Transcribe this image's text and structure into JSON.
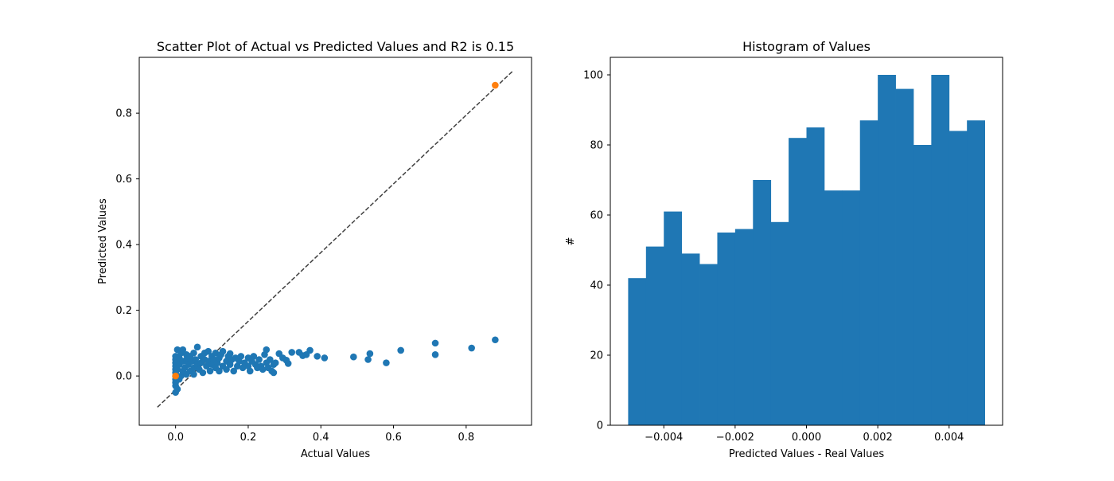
{
  "colors": {
    "series": "#1f77b4",
    "highlight": "#ff7f0e",
    "reference_line": "#404040",
    "axes": "#000000"
  },
  "chart_data": [
    {
      "type": "scatter",
      "title": "Scatter Plot of Actual vs Predicted Values and R2 is 0.15",
      "xlabel": "Actual Values",
      "ylabel": "Predicted Values",
      "xlim": [
        -0.1,
        0.98
      ],
      "ylim": [
        -0.15,
        0.97
      ],
      "xticks": [
        0.0,
        0.2,
        0.4,
        0.6,
        0.8
      ],
      "xtick_labels": [
        "0.0",
        "0.2",
        "0.4",
        "0.6",
        "0.8"
      ],
      "yticks": [
        0.0,
        0.2,
        0.4,
        0.6,
        0.8
      ],
      "ytick_labels": [
        "0.0",
        "0.2",
        "0.4",
        "0.6",
        "0.8"
      ],
      "grid": false,
      "reference_line": {
        "style": "dashed",
        "x": [
          -0.05,
          0.93
        ],
        "y": [
          -0.095,
          0.93
        ]
      },
      "series": [
        {
          "color": "#1f77b4",
          "points": [
            [
              0.0,
              -0.05
            ],
            [
              0.0,
              -0.03
            ],
            [
              0.0,
              -0.02
            ],
            [
              0.0,
              -0.01
            ],
            [
              0.0,
              0.0
            ],
            [
              0.0,
              0.01
            ],
            [
              0.0,
              0.02
            ],
            [
              0.0,
              0.03
            ],
            [
              0.0,
              0.04
            ],
            [
              0.0,
              0.05
            ],
            [
              0.0,
              0.06
            ],
            [
              0.005,
              0.08
            ],
            [
              0.005,
              -0.04
            ],
            [
              0.005,
              0.02
            ],
            [
              0.01,
              0.035
            ],
            [
              0.01,
              -0.01
            ],
            [
              0.01,
              0.055
            ],
            [
              0.015,
              0.07
            ],
            [
              0.015,
              0.0
            ],
            [
              0.02,
              0.045
            ],
            [
              0.02,
              0.015
            ],
            [
              0.02,
              0.08
            ],
            [
              0.025,
              0.025
            ],
            [
              0.03,
              0.05
            ],
            [
              0.03,
              0.005
            ],
            [
              0.03,
              0.065
            ],
            [
              0.035,
              0.035
            ],
            [
              0.04,
              0.06
            ],
            [
              0.04,
              0.015
            ],
            [
              0.045,
              0.045
            ],
            [
              0.05,
              0.025
            ],
            [
              0.05,
              0.07
            ],
            [
              0.05,
              0.005
            ],
            [
              0.055,
              0.05
            ],
            [
              0.06,
              0.035
            ],
            [
              0.06,
              0.088
            ],
            [
              0.065,
              0.02
            ],
            [
              0.07,
              0.06
            ],
            [
              0.07,
              0.04
            ],
            [
              0.075,
              0.01
            ],
            [
              0.08,
              0.05
            ],
            [
              0.08,
              0.07
            ],
            [
              0.085,
              0.03
            ],
            [
              0.09,
              0.075
            ],
            [
              0.09,
              0.045
            ],
            [
              0.095,
              0.015
            ],
            [
              0.1,
              0.06
            ],
            [
              0.1,
              0.035
            ],
            [
              0.105,
              0.05
            ],
            [
              0.11,
              0.025
            ],
            [
              0.11,
              0.07
            ],
            [
              0.115,
              0.04
            ],
            [
              0.12,
              0.055
            ],
            [
              0.12,
              0.015
            ],
            [
              0.125,
              0.065
            ],
            [
              0.13,
              0.03
            ],
            [
              0.13,
              0.075
            ],
            [
              0.14,
              0.045
            ],
            [
              0.14,
              0.02
            ],
            [
              0.145,
              0.06
            ],
            [
              0.15,
              0.035
            ],
            [
              0.15,
              0.068
            ],
            [
              0.155,
              0.05
            ],
            [
              0.16,
              0.015
            ],
            [
              0.165,
              0.055
            ],
            [
              0.17,
              0.03
            ],
            [
              0.175,
              0.045
            ],
            [
              0.18,
              0.06
            ],
            [
              0.185,
              0.025
            ],
            [
              0.19,
              0.04
            ],
            [
              0.2,
              0.03
            ],
            [
              0.2,
              0.055
            ],
            [
              0.205,
              0.015
            ],
            [
              0.21,
              0.045
            ],
            [
              0.215,
              0.06
            ],
            [
              0.22,
              0.035
            ],
            [
              0.225,
              0.025
            ],
            [
              0.23,
              0.05
            ],
            [
              0.235,
              0.03
            ],
            [
              0.24,
              0.02
            ],
            [
              0.245,
              0.065
            ],
            [
              0.25,
              0.04
            ],
            [
              0.25,
              0.08
            ],
            [
              0.255,
              0.025
            ],
            [
              0.26,
              0.05
            ],
            [
              0.265,
              0.015
            ],
            [
              0.27,
              0.035
            ],
            [
              0.27,
              0.01
            ],
            [
              0.275,
              0.04
            ],
            [
              0.285,
              0.068
            ],
            [
              0.295,
              0.055
            ],
            [
              0.305,
              0.048
            ],
            [
              0.31,
              0.038
            ],
            [
              0.32,
              0.072
            ],
            [
              0.34,
              0.072
            ],
            [
              0.35,
              0.062
            ],
            [
              0.36,
              0.065
            ],
            [
              0.37,
              0.078
            ],
            [
              0.39,
              0.06
            ],
            [
              0.41,
              0.055
            ],
            [
              0.49,
              0.058
            ],
            [
              0.53,
              0.05
            ],
            [
              0.535,
              0.068
            ],
            [
              0.58,
              0.04
            ],
            [
              0.62,
              0.078
            ],
            [
              0.715,
              0.1
            ],
            [
              0.715,
              0.065
            ],
            [
              0.815,
              0.085
            ],
            [
              0.88,
              0.11
            ]
          ]
        },
        {
          "color": "#ff7f0e",
          "points": [
            [
              0.0,
              0.0
            ],
            [
              0.88,
              0.885
            ]
          ]
        }
      ]
    },
    {
      "type": "bar",
      "title": "Histogram of Values",
      "xlabel": "Predicted Values - Real Values",
      "ylabel": "#",
      "xlim": [
        -0.0055,
        0.0055
      ],
      "ylim": [
        0,
        105
      ],
      "xticks": [
        -0.004,
        -0.002,
        0.0,
        0.002,
        0.004
      ],
      "xtick_labels": [
        "−0.004",
        "−0.002",
        "0.000",
        "0.002",
        "0.004"
      ],
      "yticks": [
        0,
        20,
        40,
        60,
        80,
        100
      ],
      "ytick_labels": [
        "0",
        "20",
        "40",
        "60",
        "80",
        "100"
      ],
      "grid": false,
      "bin_start": -0.005,
      "bin_width": 0.0005,
      "values": [
        42,
        51,
        61,
        49,
        46,
        55,
        56,
        70,
        58,
        82,
        85,
        67,
        67,
        87,
        100,
        96,
        80,
        100,
        84,
        87
      ],
      "color": "#1f77b4"
    }
  ]
}
